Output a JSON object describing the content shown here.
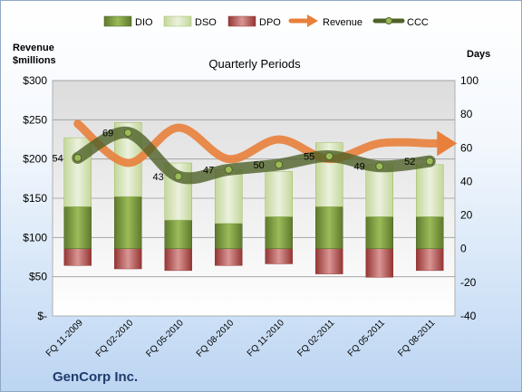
{
  "chart_data": {
    "type": "bar",
    "title": "Quarterly Periods",
    "company": "GenCorp Inc.",
    "left_axis_title_line1": "Revenue",
    "left_axis_title_line2": "$millions",
    "right_axis_title": "Days",
    "categories": [
      "FQ 11-2009",
      "FQ 02-2010",
      "FQ 05-2010",
      "FQ 08-2010",
      "FQ 11-2010",
      "FQ 02-2011",
      "FQ 05-2011",
      "FQ 08-2011"
    ],
    "left_axis": {
      "min": 0,
      "max": 300,
      "ticks": [
        "$-",
        "$50",
        "$100",
        "$150",
        "$200",
        "$250",
        "$300"
      ]
    },
    "right_axis": {
      "min": -40,
      "max": 100,
      "ticks": [
        "-40",
        "-20",
        "0",
        "20",
        "40",
        "60",
        "80",
        "100"
      ]
    },
    "series": [
      {
        "name": "DIO",
        "axis": "right",
        "color": "#77933c",
        "values": [
          25,
          31,
          17,
          15,
          19,
          25,
          19,
          19
        ]
      },
      {
        "name": "DSO",
        "axis": "right",
        "color": "#d7e4bd",
        "values": [
          41,
          44,
          34,
          32,
          27,
          38,
          31,
          31
        ]
      },
      {
        "name": "DPO",
        "axis": "right",
        "color": "#c0504d",
        "values": [
          10,
          12,
          13,
          10,
          9,
          15,
          17,
          13
        ]
      },
      {
        "name": "Revenue",
        "axis": "left",
        "color": "#e8803b",
        "values": [
          245,
          195,
          240,
          200,
          225,
          200,
          220,
          220
        ]
      },
      {
        "name": "CCC",
        "axis": "right",
        "color": "#4f6228",
        "values": [
          54,
          69,
          43,
          47,
          50,
          55,
          49,
          52
        ]
      }
    ],
    "ccc_labels": [
      "54",
      "69",
      "43",
      "47",
      "50",
      "55",
      "49",
      "52"
    ],
    "grid": true,
    "legend_position": "top"
  }
}
